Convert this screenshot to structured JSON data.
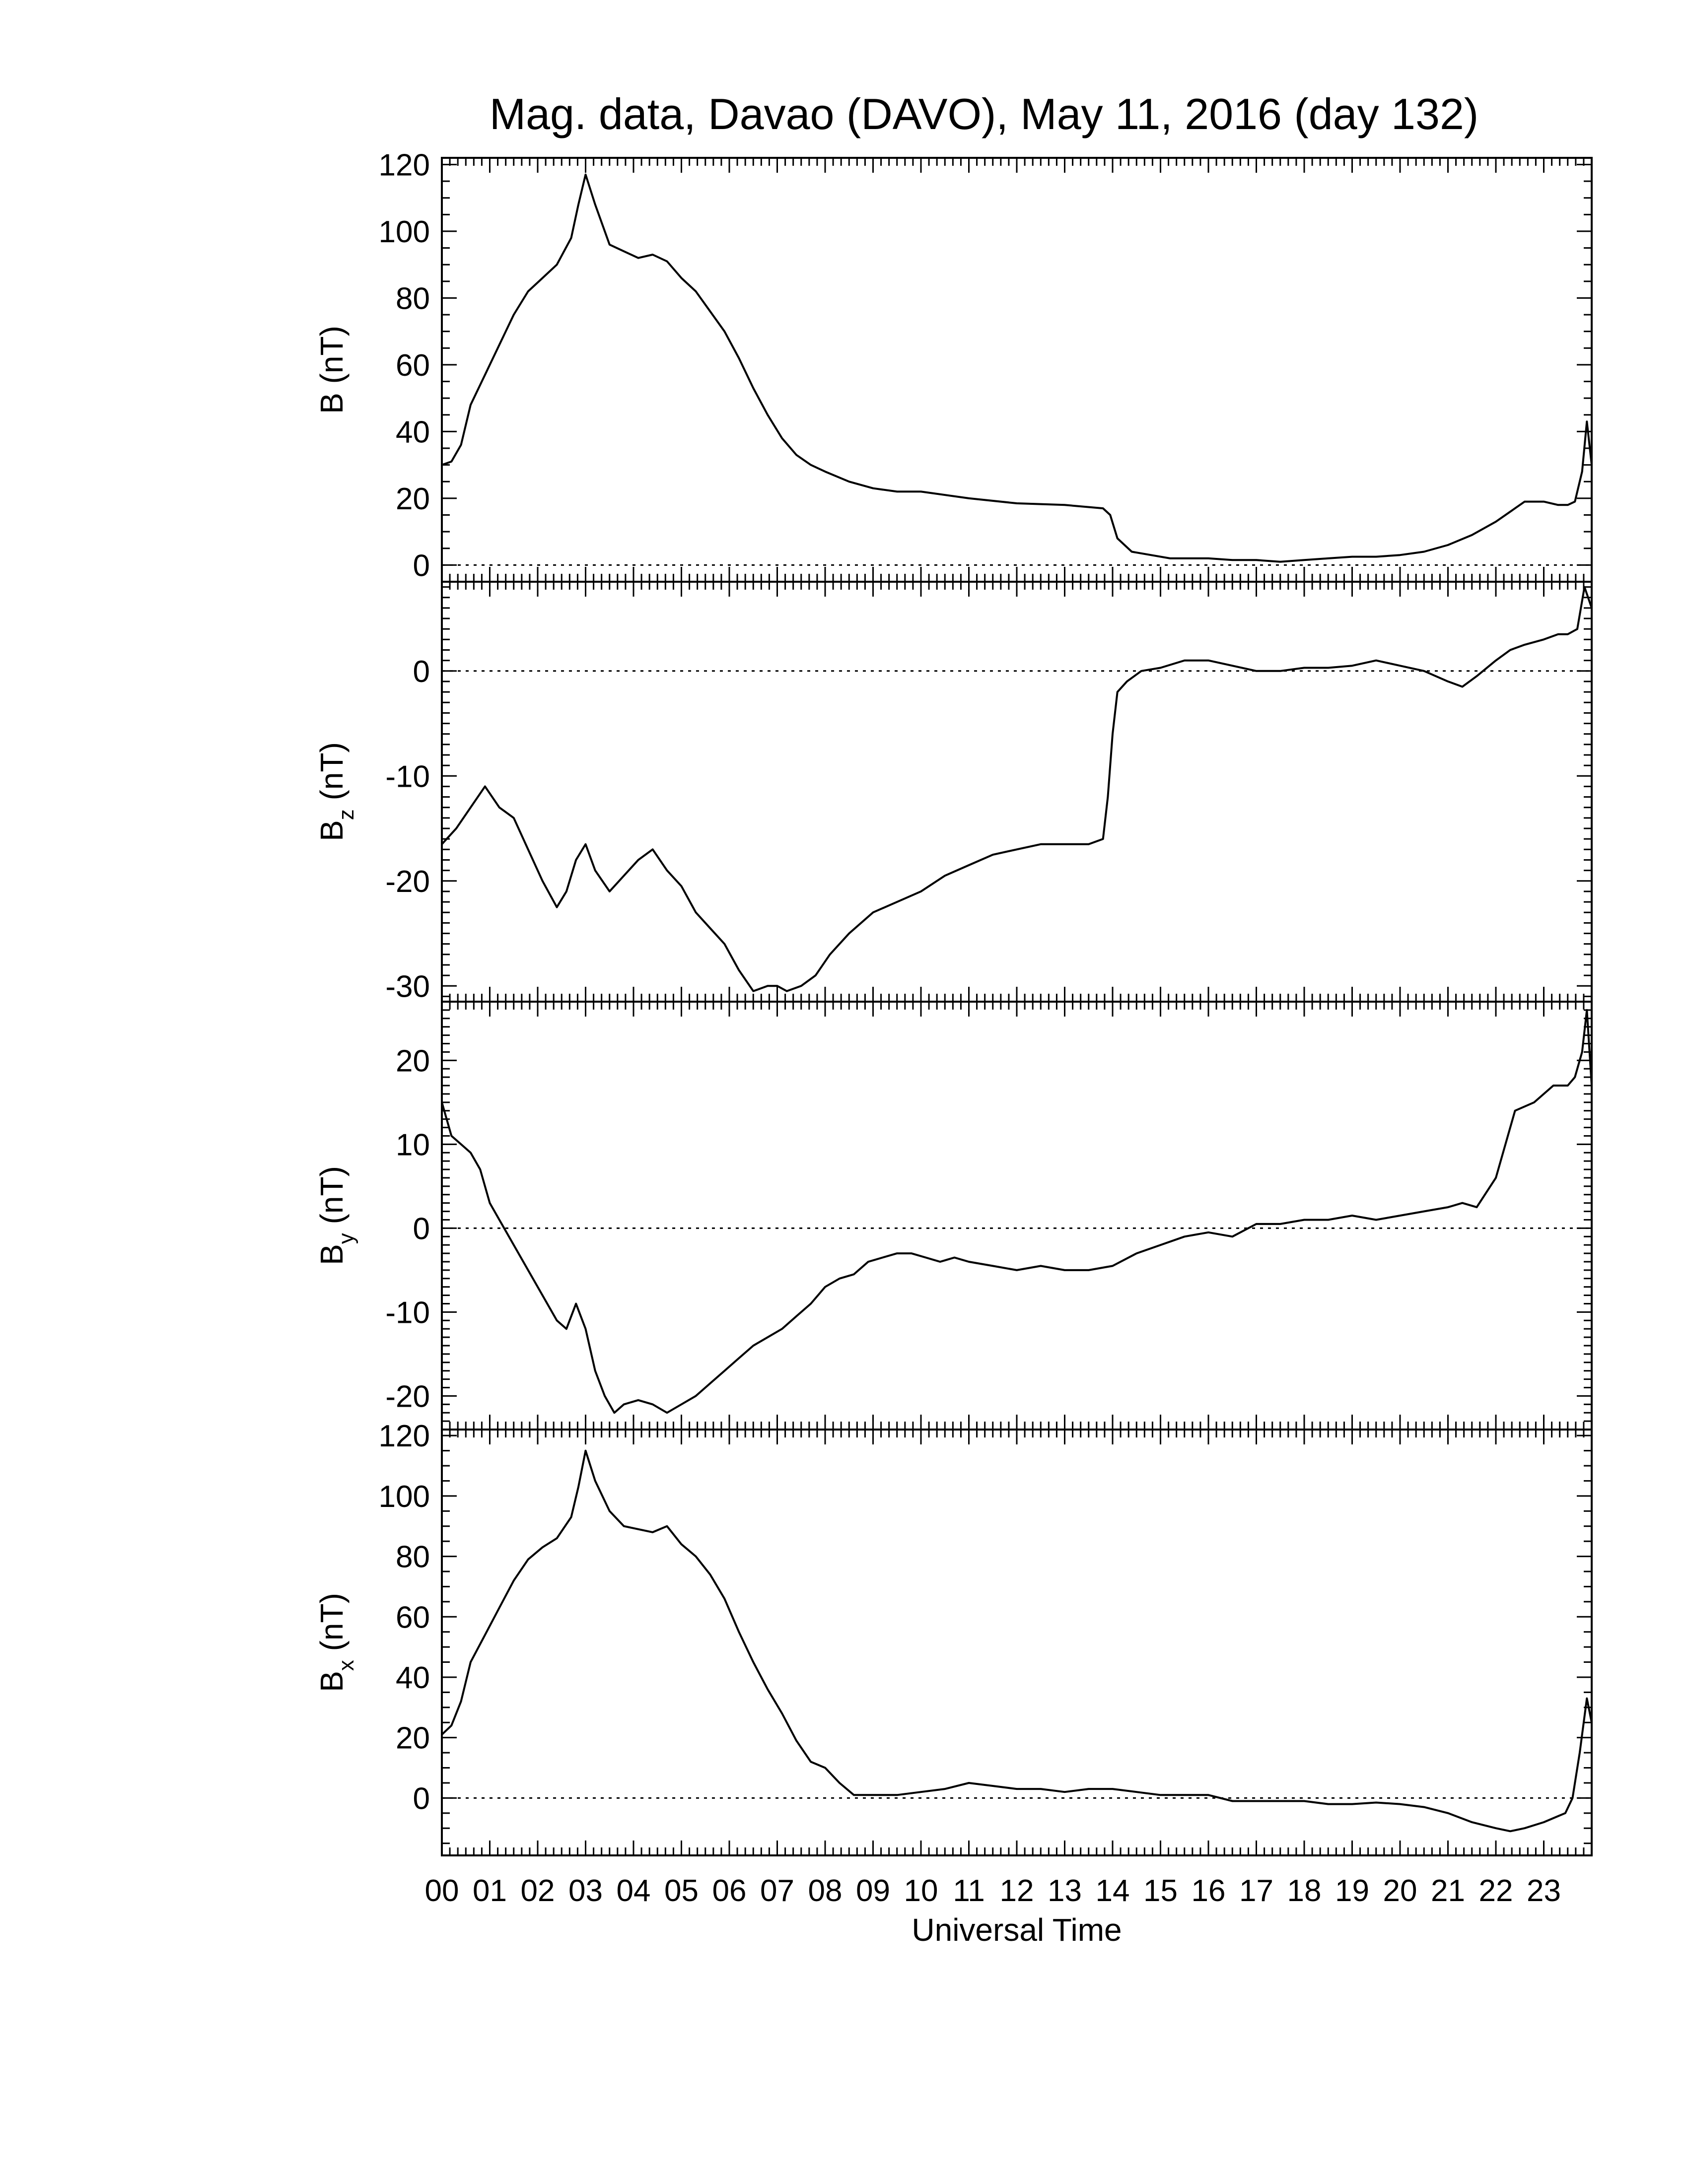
{
  "title": "Mag. data, Davao (DAVO), May 11, 2016 (day 132)",
  "xlabel": "Universal Time",
  "x_ticks": [
    "00",
    "01",
    "02",
    "03",
    "04",
    "05",
    "06",
    "07",
    "08",
    "09",
    "10",
    "11",
    "12",
    "13",
    "14",
    "15",
    "16",
    "17",
    "18",
    "19",
    "20",
    "21",
    "22",
    "23"
  ],
  "chart_data": [
    {
      "type": "line",
      "ylabel": "B (nT)",
      "ylabel_main": "B",
      "ylabel_sub": "",
      "ylabel_unit": " (nT)",
      "ylim": [
        -5,
        122
      ],
      "yticks": [
        0,
        20,
        40,
        60,
        80,
        100,
        120
      ],
      "zero_line": true,
      "x": [
        0.0,
        0.2,
        0.4,
        0.6,
        0.9,
        1.2,
        1.5,
        1.8,
        2.1,
        2.4,
        2.7,
        2.85,
        3.0,
        3.2,
        3.5,
        3.8,
        4.1,
        4.4,
        4.7,
        5.0,
        5.3,
        5.6,
        5.9,
        6.2,
        6.5,
        6.8,
        7.1,
        7.4,
        7.7,
        8.0,
        8.5,
        9.0,
        9.5,
        10.0,
        11.0,
        12.0,
        13.0,
        13.8,
        13.95,
        14.1,
        14.4,
        14.8,
        15.2,
        15.6,
        16.0,
        16.5,
        17.0,
        17.5,
        18.0,
        18.5,
        19.0,
        19.5,
        20.0,
        20.5,
        21.0,
        21.5,
        22.0,
        22.3,
        22.6,
        23.0,
        23.3,
        23.5,
        23.65,
        23.8,
        23.9,
        24.0
      ],
      "y": [
        30,
        31,
        36,
        48,
        57,
        66,
        75,
        82,
        86,
        90,
        98,
        108,
        117,
        108,
        96,
        94,
        92,
        93,
        91,
        86,
        82,
        76,
        70,
        62,
        53,
        45,
        38,
        33,
        30,
        28,
        25,
        23,
        22,
        22,
        20,
        18.5,
        18,
        17,
        15,
        8,
        4,
        3,
        2,
        2,
        2,
        1.5,
        1.5,
        1,
        1.5,
        2,
        2.5,
        2.5,
        3,
        4,
        6,
        9,
        13,
        16,
        19,
        19,
        18,
        18,
        19,
        28,
        43,
        30
      ]
    },
    {
      "type": "line",
      "ylabel": "Bz (nT)",
      "ylabel_main": "B",
      "ylabel_sub": "z",
      "ylabel_unit": " (nT)",
      "ylim": [
        -31.5,
        8.5
      ],
      "yticks": [
        -30,
        -20,
        -10,
        0
      ],
      "zero_line": true,
      "x": [
        0.0,
        0.3,
        0.6,
        0.9,
        1.2,
        1.5,
        1.8,
        2.1,
        2.4,
        2.6,
        2.8,
        3.0,
        3.2,
        3.5,
        3.8,
        4.1,
        4.4,
        4.7,
        5.0,
        5.3,
        5.6,
        5.9,
        6.2,
        6.5,
        6.8,
        7.0,
        7.2,
        7.5,
        7.8,
        8.1,
        8.5,
        9.0,
        9.5,
        10.0,
        10.5,
        11.0,
        11.5,
        12.0,
        12.5,
        13.0,
        13.5,
        13.8,
        13.9,
        14.0,
        14.1,
        14.3,
        14.6,
        15.0,
        15.5,
        16.0,
        16.5,
        17.0,
        17.5,
        18.0,
        18.5,
        19.0,
        19.5,
        20.0,
        20.5,
        21.0,
        21.3,
        21.6,
        22.0,
        22.3,
        22.6,
        23.0,
        23.3,
        23.5,
        23.7,
        23.85,
        24.0
      ],
      "y": [
        -16.5,
        -15,
        -13,
        -11,
        -13,
        -14,
        -17,
        -20,
        -22.5,
        -21,
        -18,
        -16.5,
        -19,
        -21,
        -19.5,
        -18,
        -17,
        -19,
        -20.5,
        -23,
        -24.5,
        -26,
        -28.5,
        -30.5,
        -30,
        -30,
        -30.5,
        -30,
        -29,
        -27,
        -25,
        -23,
        -22,
        -21,
        -19.5,
        -18.5,
        -17.5,
        -17,
        -16.5,
        -16.5,
        -16.5,
        -16,
        -12,
        -6,
        -2,
        -1,
        0,
        0.3,
        1,
        1,
        0.5,
        0,
        0,
        0.3,
        0.3,
        0.5,
        1,
        0.5,
        0,
        -1,
        -1.5,
        -0.5,
        1,
        2,
        2.5,
        3,
        3.5,
        3.5,
        4,
        8,
        6
      ]
    },
    {
      "type": "line",
      "ylabel": "By (nT)",
      "ylabel_main": "B",
      "ylabel_sub": "y",
      "ylabel_unit": " (nT)",
      "ylim": [
        -24,
        27
      ],
      "yticks": [
        -20,
        -10,
        0,
        10,
        20
      ],
      "zero_line": true,
      "x": [
        0.0,
        0.2,
        0.4,
        0.6,
        0.8,
        1.0,
        1.2,
        1.5,
        1.8,
        2.1,
        2.4,
        2.6,
        2.8,
        3.0,
        3.2,
        3.4,
        3.6,
        3.8,
        4.1,
        4.4,
        4.7,
        5.0,
        5.3,
        5.6,
        5.9,
        6.2,
        6.5,
        6.8,
        7.1,
        7.4,
        7.7,
        8.0,
        8.3,
        8.6,
        8.9,
        9.2,
        9.5,
        9.8,
        10.1,
        10.4,
        10.7,
        11.0,
        11.5,
        12.0,
        12.5,
        13.0,
        13.5,
        14.0,
        14.5,
        15.0,
        15.5,
        16.0,
        16.5,
        17.0,
        17.5,
        18.0,
        18.5,
        19.0,
        19.5,
        20.0,
        20.5,
        21.0,
        21.3,
        21.6,
        22.0,
        22.4,
        22.8,
        23.2,
        23.5,
        23.65,
        23.8,
        23.9,
        24.0
      ],
      "y": [
        15,
        11,
        10,
        9,
        7,
        3,
        1,
        -2,
        -5,
        -8,
        -11,
        -12,
        -9,
        -12,
        -17,
        -20,
        -22,
        -21,
        -20.5,
        -21,
        -22,
        -21,
        -20,
        -18.5,
        -17,
        -15.5,
        -14,
        -13,
        -12,
        -10.5,
        -9,
        -7,
        -6,
        -5.5,
        -4,
        -3.5,
        -3,
        -3,
        -3.5,
        -4,
        -3.5,
        -4,
        -4.5,
        -5,
        -4.5,
        -5,
        -5,
        -4.5,
        -3,
        -2,
        -1,
        -0.5,
        -1,
        0.5,
        0.5,
        1,
        1,
        1.5,
        1,
        1.5,
        2,
        2.5,
        3,
        2.5,
        6,
        14,
        15,
        17,
        17,
        18,
        21,
        26,
        17
      ]
    },
    {
      "type": "line",
      "ylabel": "Bx (nT)",
      "ylabel_main": "B",
      "ylabel_sub": "x",
      "ylabel_unit": " (nT)",
      "ylim": [
        -19,
        122
      ],
      "yticks": [
        0,
        20,
        40,
        60,
        80,
        100,
        120
      ],
      "zero_line": true,
      "x": [
        0.0,
        0.2,
        0.4,
        0.6,
        0.9,
        1.2,
        1.5,
        1.8,
        2.1,
        2.4,
        2.7,
        2.85,
        3.0,
        3.2,
        3.5,
        3.8,
        4.1,
        4.4,
        4.7,
        5.0,
        5.3,
        5.6,
        5.9,
        6.2,
        6.5,
        6.8,
        7.1,
        7.4,
        7.7,
        8.0,
        8.3,
        8.6,
        9.0,
        9.5,
        10.0,
        10.5,
        11.0,
        11.5,
        12.0,
        12.5,
        13.0,
        13.5,
        14.0,
        14.5,
        15.0,
        15.5,
        16.0,
        16.5,
        17.0,
        17.5,
        18.0,
        18.5,
        19.0,
        19.5,
        20.0,
        20.5,
        21.0,
        21.5,
        22.0,
        22.3,
        22.6,
        23.0,
        23.3,
        23.45,
        23.6,
        23.75,
        23.9,
        24.0
      ],
      "y": [
        21,
        24,
        32,
        45,
        54,
        63,
        72,
        79,
        83,
        86,
        93,
        103,
        115,
        105,
        95,
        90,
        89,
        88,
        90,
        84,
        80,
        74,
        66,
        55,
        45,
        36,
        28,
        19,
        12,
        10,
        5,
        1,
        1,
        1,
        2,
        3,
        5,
        4,
        3,
        3,
        2,
        3,
        3,
        2,
        1,
        1,
        1,
        -1,
        -1,
        -1,
        -1,
        -2,
        -2,
        -1.5,
        -2,
        -3,
        -5,
        -8,
        -10,
        -11,
        -10,
        -8,
        -6,
        -5,
        0,
        15,
        33,
        25
      ]
    }
  ]
}
